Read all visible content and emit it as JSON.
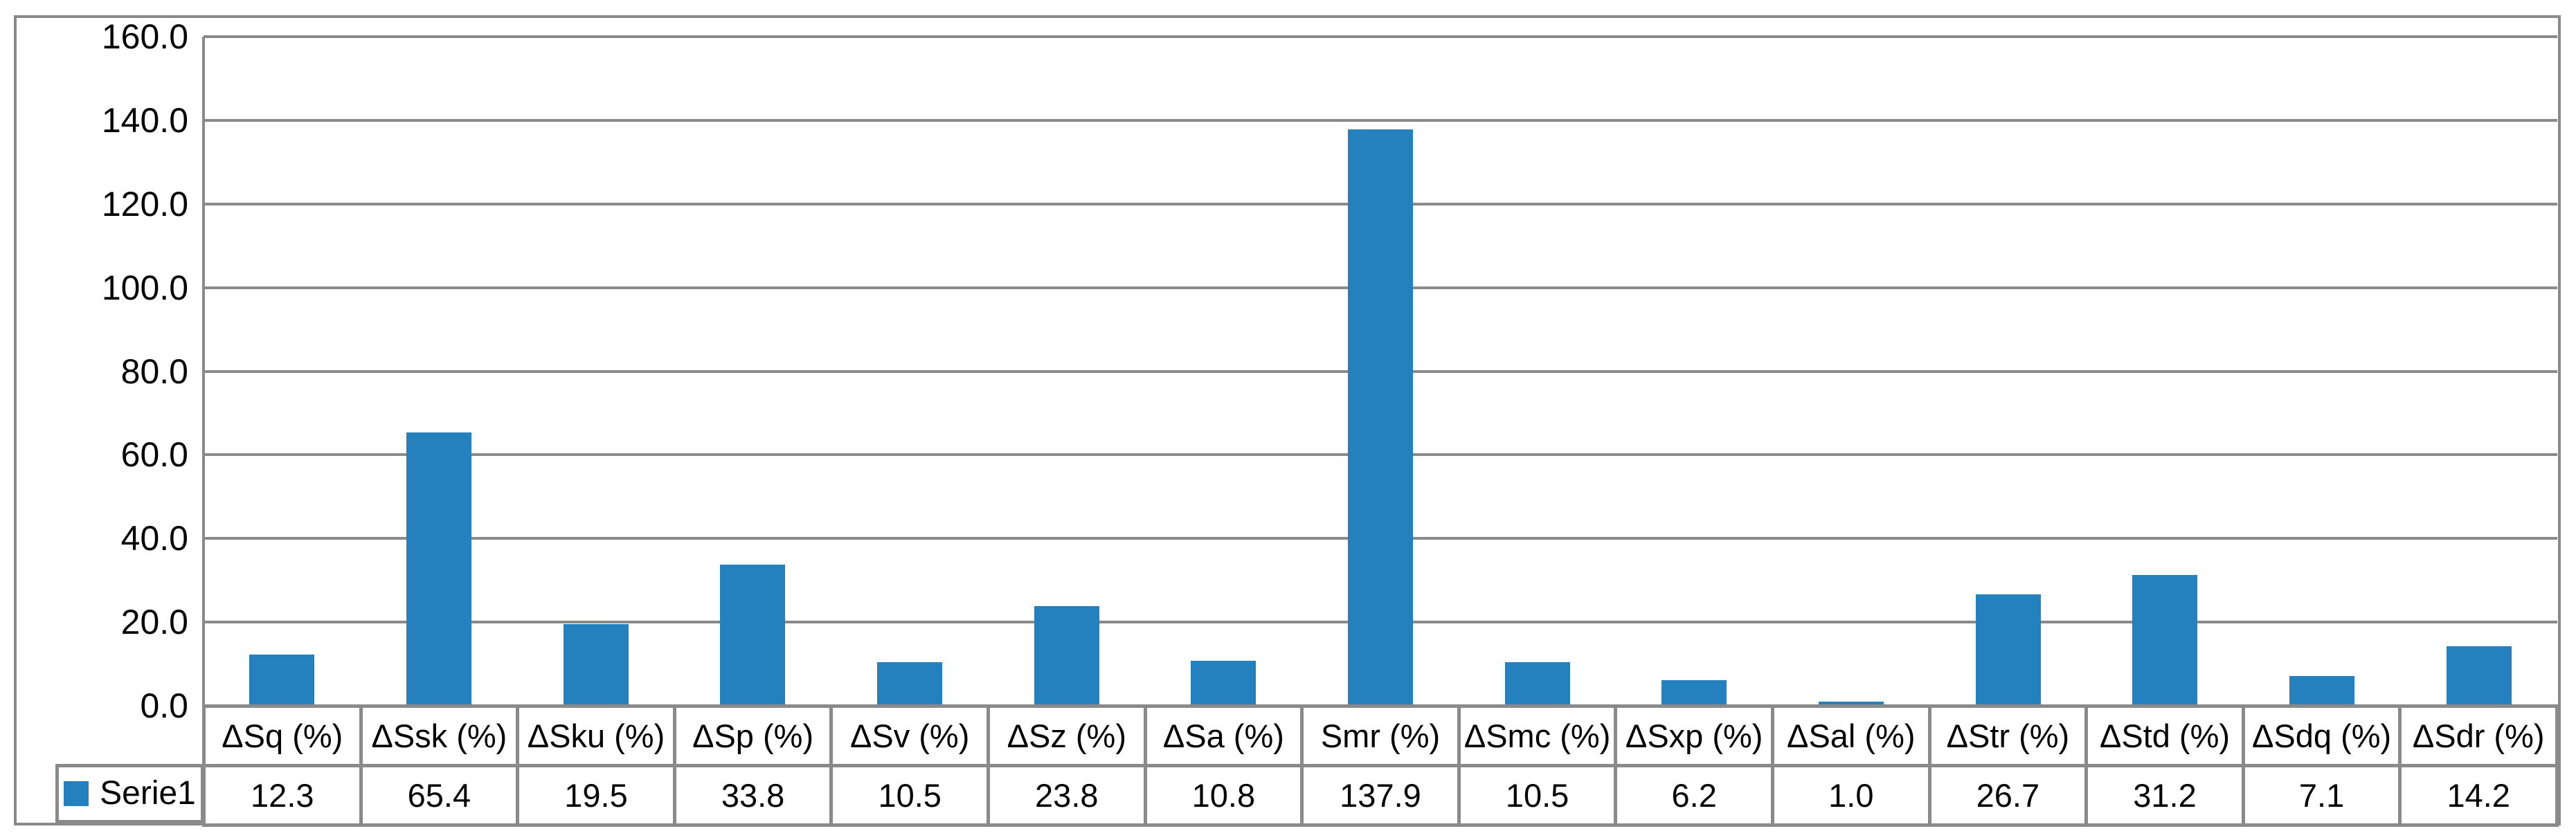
{
  "chart": {
    "legend": {
      "label": "Serie1",
      "swatch_icon": "blue-square-swatch"
    },
    "colors": {
      "bar": "#2581BD",
      "grid": "#8A8A8A",
      "text": "#000000",
      "background": "#FFFFFF"
    }
  },
  "chart_data": {
    "type": "bar",
    "title": "",
    "xlabel": "",
    "ylabel": "",
    "categories": [
      "ΔSq (%)",
      "ΔSsk (%)",
      "ΔSku (%)",
      "ΔSp (%)",
      "ΔSv (%)",
      "ΔSz (%)",
      "ΔSa (%)",
      "Smr (%)",
      "ΔSmc (%)",
      "ΔSxp (%)",
      "ΔSal (%)",
      "ΔStr (%)",
      "ΔStd (%)",
      "ΔSdq (%)",
      "ΔSdr (%)"
    ],
    "series": [
      {
        "name": "Serie1",
        "values": [
          12.3,
          65.4,
          19.5,
          33.8,
          10.5,
          23.8,
          10.8,
          137.9,
          10.5,
          6.2,
          1.0,
          26.7,
          31.2,
          7.1,
          14.2
        ]
      }
    ],
    "value_labels": [
      "12.3",
      "65.4",
      "19.5",
      "33.8",
      "10.5",
      "23.8",
      "10.8",
      "137.9",
      "10.5",
      "6.2",
      "1.0",
      "26.7",
      "31.2",
      "7.1",
      "14.2"
    ],
    "ylim": [
      0,
      160
    ],
    "yticks": [
      0,
      20,
      40,
      60,
      80,
      100,
      120,
      140,
      160
    ],
    "ytick_labels": [
      "0.0",
      "20.0",
      "40.0",
      "60.0",
      "80.0",
      "100.0",
      "120.0",
      "140.0",
      "160.0"
    ],
    "grid": true,
    "gridlines": "horizontal",
    "legend_position": "bottom-left-of-data-table",
    "data_table_shown": true
  }
}
